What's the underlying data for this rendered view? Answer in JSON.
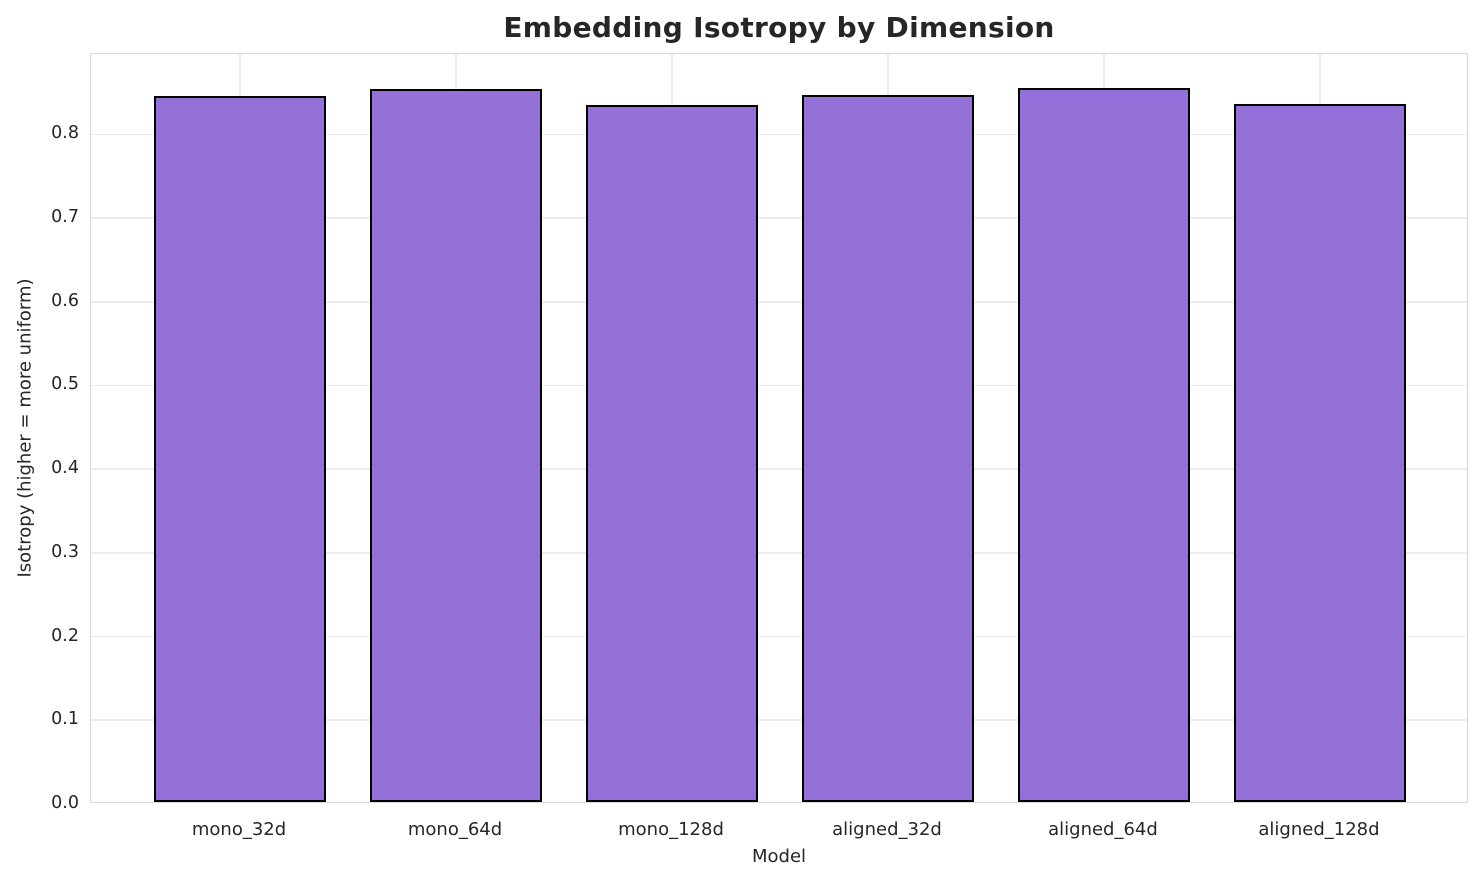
{
  "chart_data": {
    "type": "bar",
    "title": "Embedding Isotropy by Dimension",
    "xlabel": "Model",
    "ylabel": "Isotropy (higher = more uniform)",
    "categories": [
      "mono_32d",
      "mono_64d",
      "mono_128d",
      "aligned_32d",
      "aligned_64d",
      "aligned_128d"
    ],
    "values": [
      0.844,
      0.852,
      0.833,
      0.845,
      0.853,
      0.834
    ],
    "yticks": [
      0.0,
      0.1,
      0.2,
      0.3,
      0.4,
      0.5,
      0.6,
      0.7,
      0.8
    ],
    "ylim": [
      0,
      0.896
    ],
    "grid": true,
    "legend": "none",
    "bar_color": "#9471d8",
    "bar_edge_color": "#000000",
    "grid_color": "#ececec",
    "spine_color": "#d6d6d6",
    "text_color": "#262626",
    "background_color": "#ffffff"
  }
}
